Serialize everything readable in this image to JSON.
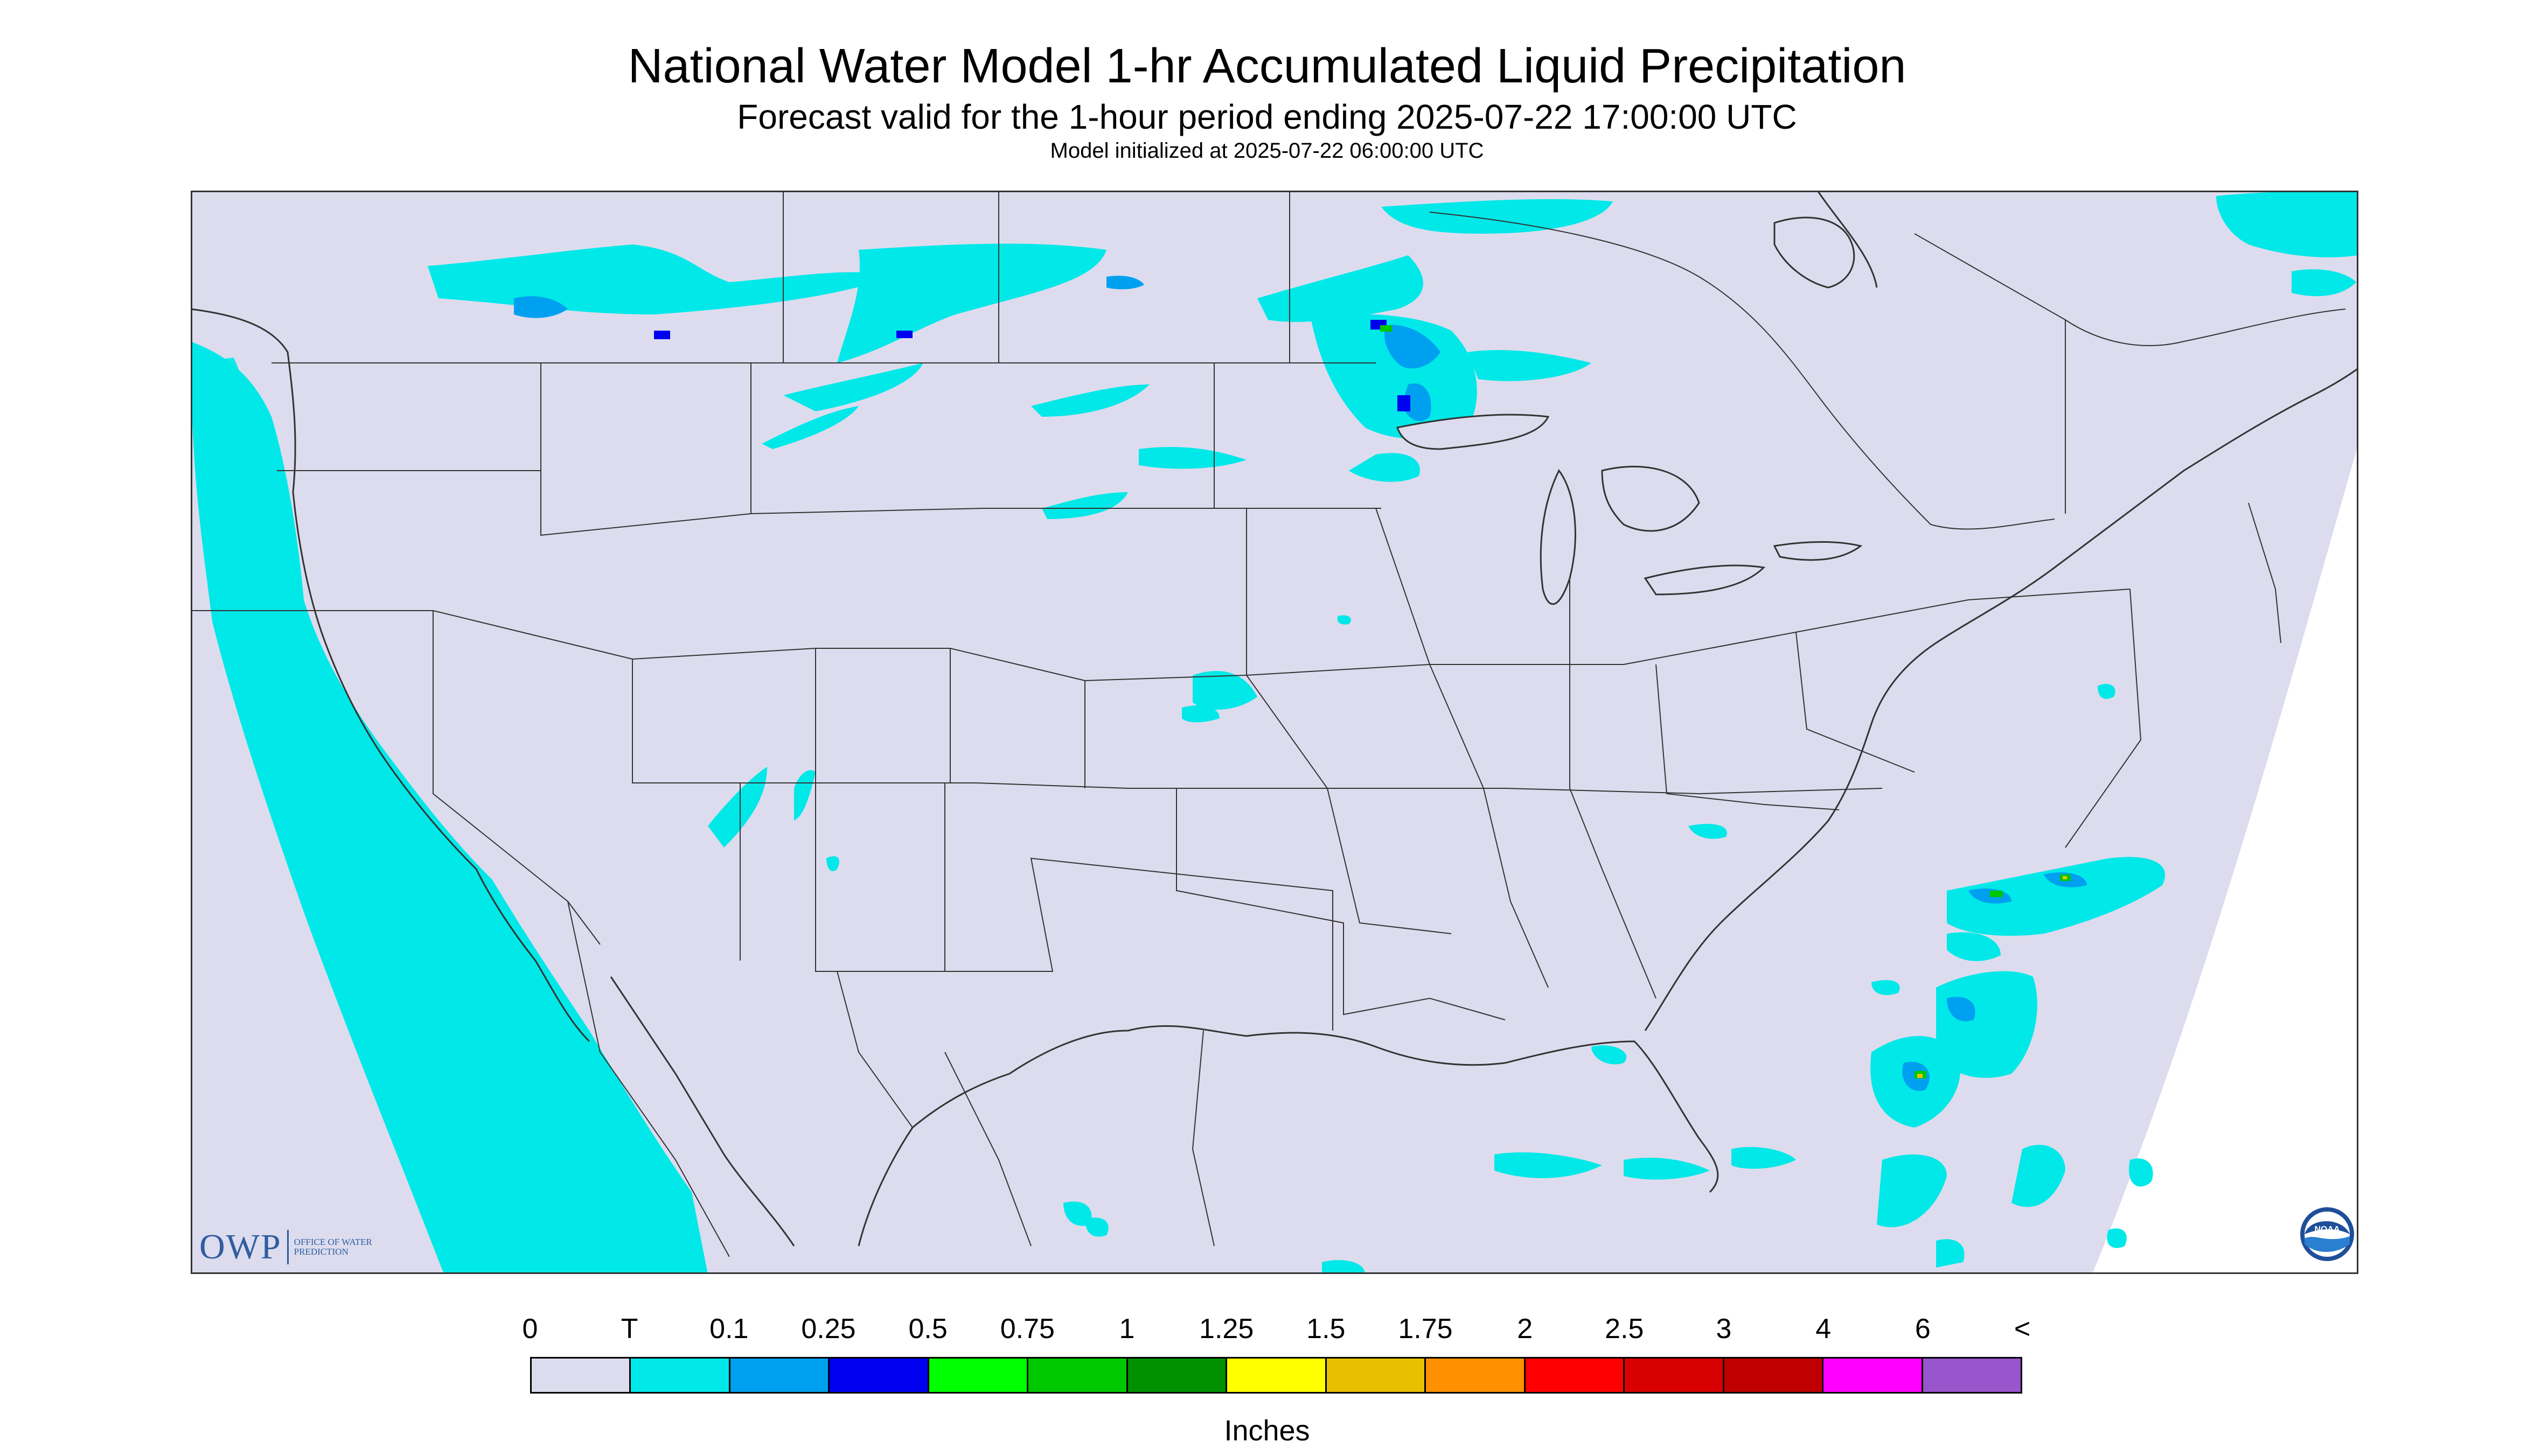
{
  "title": "National Water Model 1-hr Accumulated Liquid Precipitation",
  "subtitle": "Forecast valid for the 1-hour period ending 2025-07-22 17:00:00 UTC",
  "init_note": "Model initialized at 2025-07-22 06:00:00 UTC",
  "logos": {
    "owp": "OWP",
    "owp_full": "OFFICE OF WATER PREDICTION",
    "noaa": "NOAA"
  },
  "legend": {
    "labels": [
      "0",
      "T",
      "0.1",
      "0.25",
      "0.5",
      "0.75",
      "1",
      "1.25",
      "1.5",
      "1.75",
      "2",
      "2.5",
      "3",
      "4",
      "6",
      "<"
    ],
    "colors": [
      "#dcdcee",
      "#00e8e8",
      "#00a0f0",
      "#0000f0",
      "#00ff00",
      "#00c800",
      "#009000",
      "#ffff00",
      "#e8c000",
      "#ff9000",
      "#ff0000",
      "#d80000",
      "#c00000",
      "#ff00ff",
      "#9955cc"
    ],
    "units": "Inches"
  },
  "map": {
    "background_color": "#dcdcee",
    "outside_color": "#ffffff",
    "precip_color_trace": "#00e8e8",
    "border_color": "#333333"
  }
}
